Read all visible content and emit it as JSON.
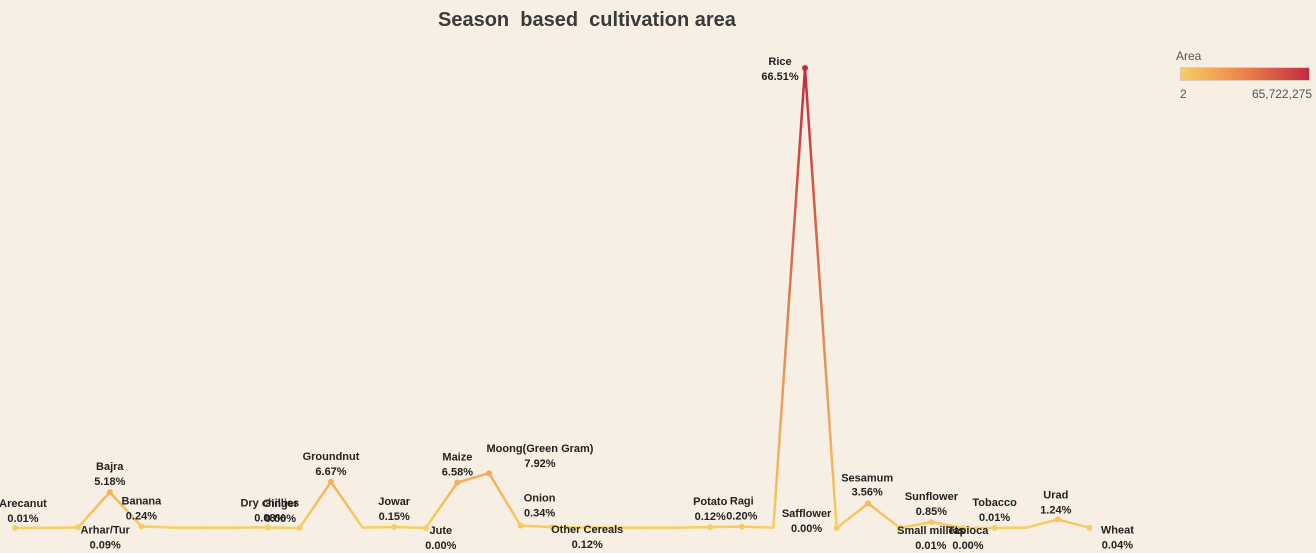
{
  "chart_data": {
    "type": "line",
    "title": "Season  based  cultivation area",
    "xlabel": "",
    "ylabel": "",
    "grid": false,
    "legend": {
      "title": "Area",
      "min_label": "2",
      "max_label": "65,722,275",
      "placement": "top-right",
      "colors": [
        "#f6cf63",
        "#ee8a4c",
        "#c42a40"
      ]
    },
    "points": [
      {
        "name": "Arecanut",
        "pct": "0.01%",
        "value": 0.01
      },
      {
        "name": "",
        "pct": "",
        "value": 0.01
      },
      {
        "name": "Arhar/Tur",
        "pct": "0.09%",
        "value": 0.09
      },
      {
        "name": "Bajra",
        "pct": "5.18%",
        "value": 5.18
      },
      {
        "name": "Banana",
        "pct": "0.24%",
        "value": 0.24
      },
      {
        "name": "",
        "pct": "",
        "value": 0.05
      },
      {
        "name": "",
        "pct": "",
        "value": 0.05
      },
      {
        "name": "",
        "pct": "",
        "value": 0.05
      },
      {
        "name": "Dry chillies",
        "pct": "0.08%",
        "value": 0.08
      },
      {
        "name": "Ginger",
        "pct": "0.00%",
        "value": 0.0
      },
      {
        "name": "Groundnut",
        "pct": "6.67%",
        "value": 6.67
      },
      {
        "name": "",
        "pct": "",
        "value": 0.05
      },
      {
        "name": "Jowar",
        "pct": "0.15%",
        "value": 0.15
      },
      {
        "name": "Jute",
        "pct": "0.00%",
        "value": 0.0
      },
      {
        "name": "Maize",
        "pct": "6.58%",
        "value": 6.58
      },
      {
        "name": "Moong(Green Gram)",
        "pct": "7.92%",
        "value": 7.92
      },
      {
        "name": "Onion",
        "pct": "0.34%",
        "value": 0.34
      },
      {
        "name": "Other Cereals",
        "pct": "0.12%",
        "value": 0.12
      },
      {
        "name": "",
        "pct": "",
        "value": 0.05
      },
      {
        "name": "",
        "pct": "",
        "value": 0.05
      },
      {
        "name": "",
        "pct": "",
        "value": 0.05
      },
      {
        "name": "",
        "pct": "",
        "value": 0.05
      },
      {
        "name": "Potato",
        "pct": "0.12%",
        "value": 0.12
      },
      {
        "name": "Ragi",
        "pct": "0.20%",
        "value": 0.2
      },
      {
        "name": "",
        "pct": "",
        "value": 0.05
      },
      {
        "name": "Rice",
        "pct": "66.51%",
        "value": 66.51
      },
      {
        "name": "Safflower",
        "pct": "0.00%",
        "value": 0.0
      },
      {
        "name": "Sesamum",
        "pct": "3.56%",
        "value": 3.56
      },
      {
        "name": "Small millets",
        "pct": "0.01%",
        "value": 0.01
      },
      {
        "name": "Sunflower",
        "pct": "0.85%",
        "value": 0.85
      },
      {
        "name": "Tapioca",
        "pct": "0.00%",
        "value": 0.0
      },
      {
        "name": "Tobacco",
        "pct": "0.01%",
        "value": 0.01
      },
      {
        "name": "",
        "pct": "",
        "value": 0.05
      },
      {
        "name": "Urad",
        "pct": "1.24%",
        "value": 1.24
      },
      {
        "name": "Wheat",
        "pct": "0.04%",
        "value": 0.04
      }
    ],
    "ylim": [
      0,
      66.51
    ]
  }
}
